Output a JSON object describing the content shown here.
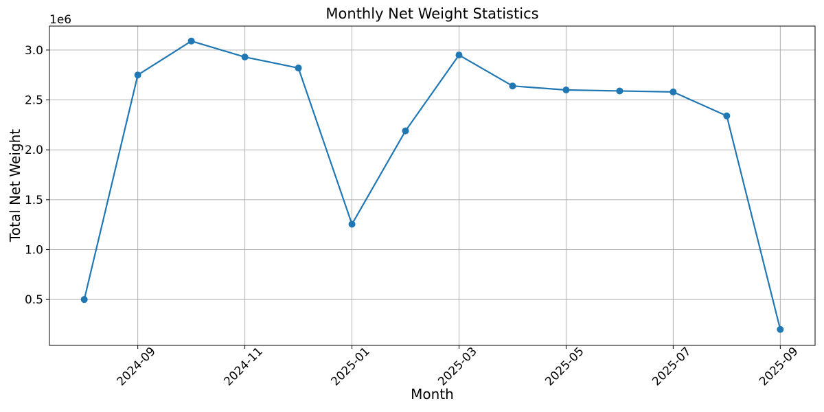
{
  "chart_data": {
    "type": "line",
    "title": "Monthly Net Weight Statistics",
    "xlabel": "Month",
    "ylabel": "Total Net Weight",
    "y_offset_label": "1e6",
    "x": [
      "2024-08",
      "2024-09",
      "2024-10",
      "2024-11",
      "2024-12",
      "2025-01",
      "2025-02",
      "2025-03",
      "2025-04",
      "2025-05",
      "2025-06",
      "2025-07",
      "2025-08",
      "2025-09"
    ],
    "values": [
      500000,
      2750000,
      3090000,
      2930000,
      2820000,
      1255000,
      2190000,
      2950000,
      2640000,
      2600000,
      2590000,
      2580000,
      2340000,
      200000
    ],
    "series_name": "Total Net Weight",
    "xtick_indices": [
      1,
      3,
      5,
      7,
      9,
      11,
      13
    ],
    "xtick_labels": [
      "2024-09",
      "2024-11",
      "2025-01",
      "2025-03",
      "2025-05",
      "2025-07",
      "2025-09"
    ],
    "xtick_rotation_deg": 45,
    "ytick_values": [
      500000,
      1000000,
      1500000,
      2000000,
      2500000,
      3000000
    ],
    "ytick_labels": [
      "0.5",
      "1.0",
      "1.5",
      "2.0",
      "2.5",
      "3.0"
    ],
    "xlim": [
      -0.65,
      13.65
    ],
    "ylim": [
      40000,
      3240000
    ],
    "grid": true,
    "legend_position": "none",
    "line_color": "#1f77b4",
    "marker": "o",
    "grid_color": "#b0b0b0",
    "spine_color": "#000000"
  }
}
